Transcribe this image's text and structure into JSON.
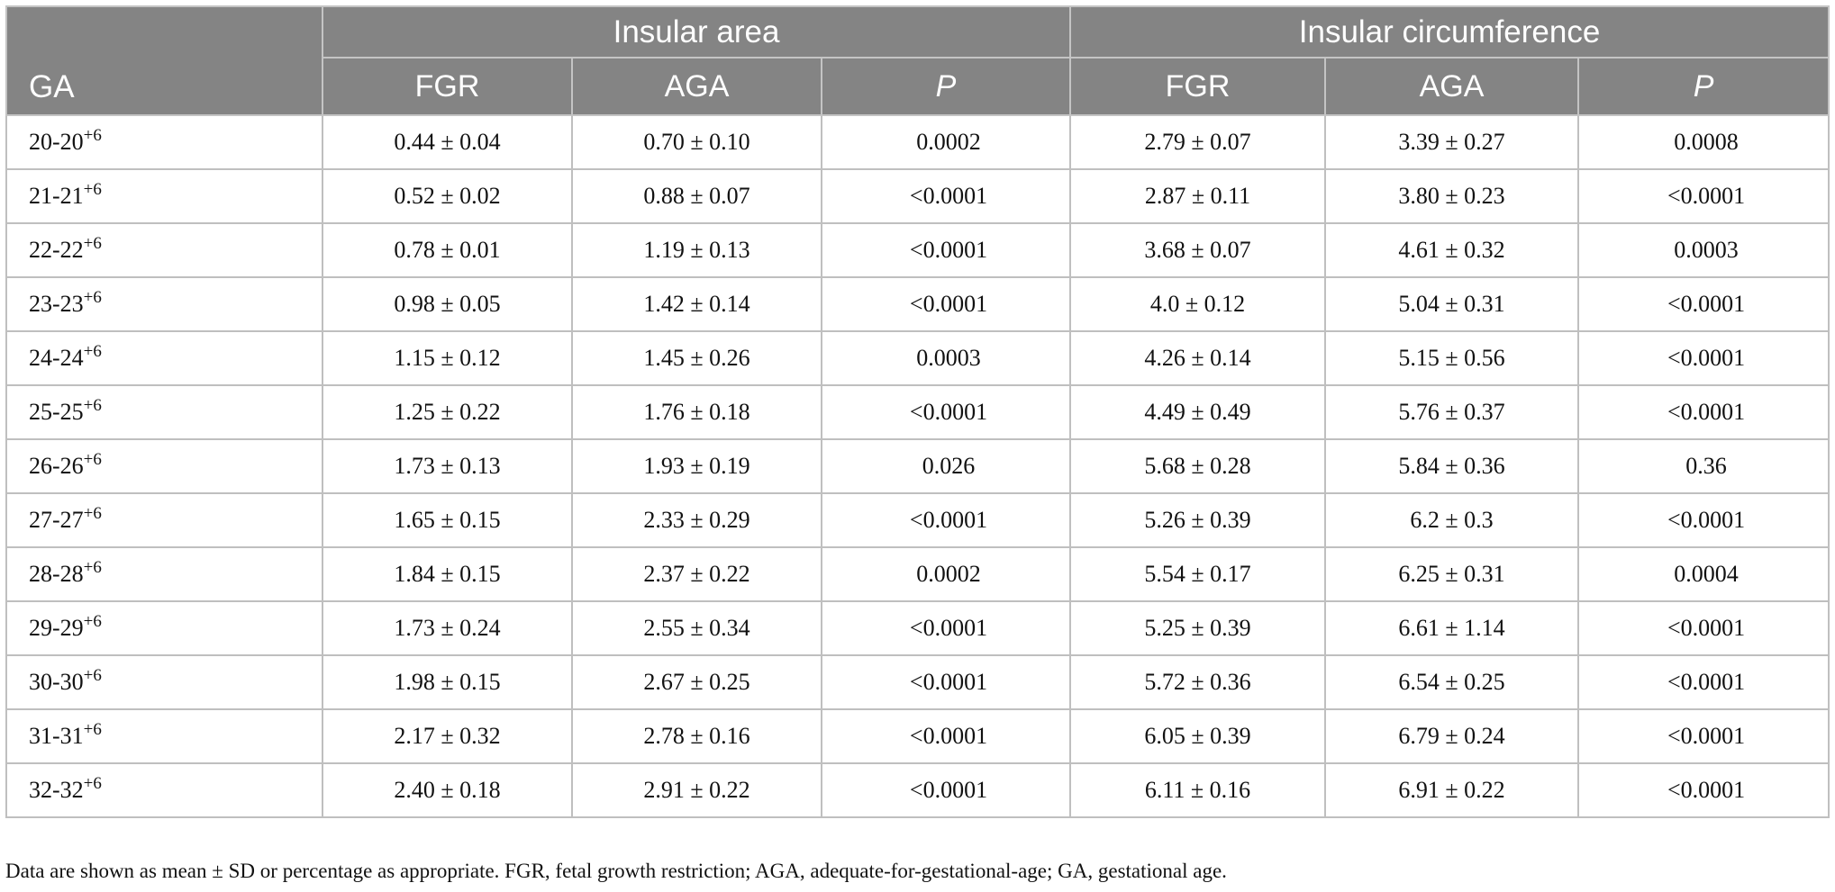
{
  "table": {
    "headers": {
      "ga": "GA",
      "group_area": "Insular area",
      "group_circ": "Insular circumference",
      "fgr": "FGR",
      "aga": "AGA",
      "p": "P"
    },
    "rows": [
      {
        "ga": "20-20",
        "sup": "+6",
        "area_fgr": "0.44 ± 0.04",
        "area_aga": "0.70 ± 0.10",
        "area_p": "0.0002",
        "circ_fgr": "2.79 ± 0.07",
        "circ_aga": "3.39 ± 0.27",
        "circ_p": "0.0008"
      },
      {
        "ga": "21-21",
        "sup": "+6",
        "area_fgr": "0.52 ± 0.02",
        "area_aga": "0.88 ± 0.07",
        "area_p": "<0.0001",
        "circ_fgr": "2.87 ± 0.11",
        "circ_aga": "3.80 ± 0.23",
        "circ_p": "<0.0001"
      },
      {
        "ga": "22-22",
        "sup": "+6",
        "area_fgr": "0.78 ± 0.01",
        "area_aga": "1.19 ± 0.13",
        "area_p": "<0.0001",
        "circ_fgr": "3.68 ± 0.07",
        "circ_aga": "4.61 ± 0.32",
        "circ_p": "0.0003"
      },
      {
        "ga": "23-23",
        "sup": "+6",
        "area_fgr": "0.98 ± 0.05",
        "area_aga": "1.42 ± 0.14",
        "area_p": "<0.0001",
        "circ_fgr": "4.0 ± 0.12",
        "circ_aga": "5.04 ± 0.31",
        "circ_p": "<0.0001"
      },
      {
        "ga": "24-24",
        "sup": "+6",
        "area_fgr": "1.15 ± 0.12",
        "area_aga": "1.45 ± 0.26",
        "area_p": "0.0003",
        "circ_fgr": "4.26 ± 0.14",
        "circ_aga": "5.15 ± 0.56",
        "circ_p": "<0.0001"
      },
      {
        "ga": "25-25",
        "sup": "+6",
        "area_fgr": "1.25 ± 0.22",
        "area_aga": "1.76 ± 0.18",
        "area_p": "<0.0001",
        "circ_fgr": "4.49 ± 0.49",
        "circ_aga": "5.76 ± 0.37",
        "circ_p": "<0.0001"
      },
      {
        "ga": "26-26",
        "sup": "+6",
        "area_fgr": "1.73 ± 0.13",
        "area_aga": "1.93 ± 0.19",
        "area_p": "0.026",
        "circ_fgr": "5.68 ± 0.28",
        "circ_aga": "5.84 ± 0.36",
        "circ_p": "0.36"
      },
      {
        "ga": "27-27",
        "sup": "+6",
        "area_fgr": "1.65 ± 0.15",
        "area_aga": "2.33 ± 0.29",
        "area_p": "<0.0001",
        "circ_fgr": "5.26 ± 0.39",
        "circ_aga": "6.2 ± 0.3",
        "circ_p": "<0.0001"
      },
      {
        "ga": "28-28",
        "sup": "+6",
        "area_fgr": "1.84 ± 0.15",
        "area_aga": "2.37 ± 0.22",
        "area_p": "0.0002",
        "circ_fgr": "5.54 ± 0.17",
        "circ_aga": "6.25 ± 0.31",
        "circ_p": "0.0004"
      },
      {
        "ga": "29-29",
        "sup": "+6",
        "area_fgr": "1.73 ± 0.24",
        "area_aga": "2.55 ± 0.34",
        "area_p": "<0.0001",
        "circ_fgr": "5.25 ± 0.39",
        "circ_aga": "6.61 ± 1.14",
        "circ_p": "<0.0001"
      },
      {
        "ga": "30-30",
        "sup": "+6",
        "area_fgr": "1.98 ± 0.15",
        "area_aga": "2.67 ± 0.25",
        "area_p": "<0.0001",
        "circ_fgr": "5.72 ± 0.36",
        "circ_aga": "6.54 ± 0.25",
        "circ_p": "<0.0001"
      },
      {
        "ga": "31-31",
        "sup": "+6",
        "area_fgr": "2.17 ± 0.32",
        "area_aga": "2.78 ± 0.16",
        "area_p": "<0.0001",
        "circ_fgr": "6.05 ± 0.39",
        "circ_aga": "6.79 ± 0.24",
        "circ_p": "<0.0001"
      },
      {
        "ga": "32-32",
        "sup": "+6",
        "area_fgr": "2.40 ± 0.18",
        "area_aga": "2.91 ± 0.22",
        "area_p": "<0.0001",
        "circ_fgr": "6.11 ± 0.16",
        "circ_aga": "6.91 ± 0.22",
        "circ_p": "<0.0001"
      }
    ]
  },
  "footnote": "Data are shown as mean ± SD or percentage as appropriate. FGR, fetal growth restriction; AGA, adequate-for-gestational-age; GA, gestational age.",
  "colors": {
    "header_bg": "#848484",
    "header_text": "#ffffff",
    "grid": "#bfbfbf"
  }
}
